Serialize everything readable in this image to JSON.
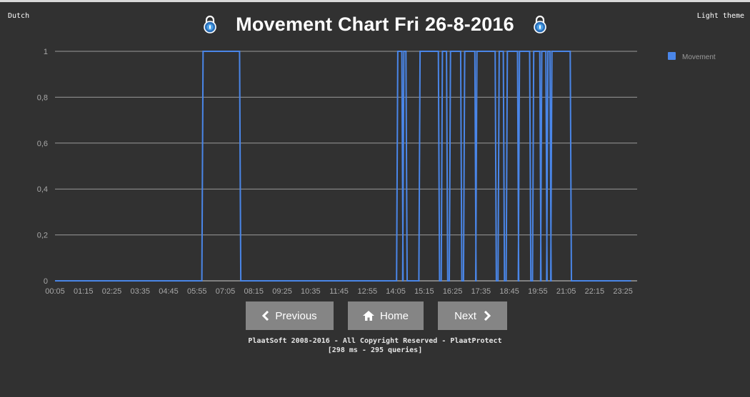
{
  "header": {
    "language_link": "Dutch",
    "theme_link": "Light theme",
    "title": "Movement Chart Fri 26-8-2016",
    "left_icon": "lock-icon",
    "right_icon": "lock-icon"
  },
  "nav": {
    "previous_label": "Previous",
    "home_label": "Home",
    "next_label": "Next"
  },
  "footer": {
    "line1": "PlaatSoft 2008-2016 - All Copyright Reserved - PlaatProtect",
    "line2": "[298 ms - 295 queries]"
  },
  "colors": {
    "background": "#313131",
    "series": "#4a86e8",
    "button": "#858585"
  },
  "chart_data": {
    "type": "line",
    "legend": "top-right",
    "grid": true,
    "ylim": [
      0,
      1
    ],
    "y_ticks": [
      "0",
      "0,2",
      "0,4",
      "0,6",
      "0,8",
      "1"
    ],
    "x_ticks": [
      "00:05",
      "01:15",
      "02:25",
      "03:35",
      "04:45",
      "05:55",
      "07:05",
      "08:15",
      "09:25",
      "10:35",
      "11:45",
      "12:55",
      "14:05",
      "15:15",
      "16:25",
      "17:35",
      "18:45",
      "19:55",
      "21:05",
      "22:15",
      "23:25"
    ],
    "series": [
      {
        "name": "Movement",
        "color": "#4a86e8",
        "high_intervals": [
          [
            "06:10",
            "07:40"
          ],
          [
            "14:10",
            "14:20"
          ],
          [
            "14:25",
            "14:30"
          ],
          [
            "15:05",
            "15:50"
          ],
          [
            "16:00",
            "16:10"
          ],
          [
            "16:20",
            "16:45"
          ],
          [
            "16:55",
            "17:20"
          ],
          [
            "17:25",
            "18:10"
          ],
          [
            "18:20",
            "18:30"
          ],
          [
            "18:40",
            "19:05"
          ],
          [
            "19:10",
            "19:35"
          ],
          [
            "19:45",
            "20:00"
          ],
          [
            "20:05",
            "20:15"
          ],
          [
            "20:20",
            "20:25"
          ],
          [
            "20:30",
            "21:15"
          ]
        ]
      }
    ]
  }
}
